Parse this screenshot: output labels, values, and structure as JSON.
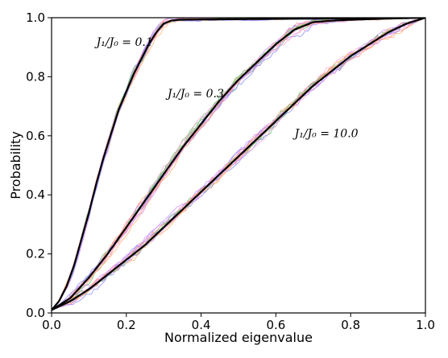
{
  "chart_data": {
    "type": "line",
    "xlabel": "Normalized eigenvalue",
    "ylabel": "Probability",
    "xlim": [
      0.0,
      1.0
    ],
    "ylim": [
      0.0,
      1.0
    ],
    "x_ticks": [
      "0.0",
      "0.2",
      "0.4",
      "0.6",
      "0.8",
      "1.0"
    ],
    "y_ticks": [
      "0.0",
      "0.2",
      "0.4",
      "0.6",
      "0.8",
      "1.0"
    ],
    "grid": false,
    "legend": "none",
    "series": [
      {
        "color": "#000000",
        "label": "J₁/J₀ = 0.1",
        "x": [
          0.0,
          0.02,
          0.04,
          0.06,
          0.08,
          0.1,
          0.12,
          0.14,
          0.16,
          0.18,
          0.2,
          0.22,
          0.24,
          0.26,
          0.28,
          0.3,
          0.32,
          0.34,
          0.4,
          0.5,
          0.6,
          0.7,
          0.8,
          0.9,
          1.0
        ],
        "y": [
          0.01,
          0.04,
          0.09,
          0.16,
          0.25,
          0.34,
          0.44,
          0.53,
          0.61,
          0.69,
          0.75,
          0.81,
          0.86,
          0.91,
          0.95,
          0.98,
          0.99,
          0.993,
          0.994,
          0.995,
          0.996,
          0.997,
          0.998,
          0.999,
          1.0
        ]
      },
      {
        "color": "#000000",
        "label": "J₁/J₀ = 0.3",
        "x": [
          0.0,
          0.05,
          0.1,
          0.15,
          0.2,
          0.25,
          0.3,
          0.35,
          0.4,
          0.45,
          0.5,
          0.55,
          0.6,
          0.65,
          0.7,
          0.75,
          0.8,
          0.85,
          0.9,
          1.0
        ],
        "y": [
          0.01,
          0.05,
          0.12,
          0.2,
          0.29,
          0.38,
          0.47,
          0.56,
          0.64,
          0.72,
          0.79,
          0.85,
          0.91,
          0.96,
          0.985,
          0.99,
          0.993,
          0.995,
          0.997,
          1.0
        ]
      },
      {
        "color": "#000000",
        "label": "J₁/J₀ = 10.0",
        "x": [
          0.0,
          0.05,
          0.1,
          0.15,
          0.2,
          0.25,
          0.3,
          0.35,
          0.4,
          0.45,
          0.5,
          0.55,
          0.6,
          0.65,
          0.7,
          0.75,
          0.8,
          0.85,
          0.9,
          0.95,
          1.0
        ],
        "y": [
          0.01,
          0.04,
          0.08,
          0.13,
          0.18,
          0.23,
          0.29,
          0.35,
          0.41,
          0.47,
          0.53,
          0.59,
          0.65,
          0.71,
          0.77,
          0.82,
          0.87,
          0.91,
          0.95,
          0.98,
          1.0
        ]
      }
    ],
    "noise_colors": [
      "#ff8c8c",
      "#8c8cff",
      "#6cbf6c",
      "#ffa8d8",
      "#c88cff",
      "#ffb070"
    ],
    "annotations": [
      {
        "text": "J₁/J₀ = 0.1",
        "x": 0.12,
        "y": 0.905
      },
      {
        "text": "J₁/J₀ = 0.3",
        "x": 0.31,
        "y": 0.73
      },
      {
        "text": "J₁/J₀ = 10.0",
        "x": 0.65,
        "y": 0.595
      }
    ]
  }
}
